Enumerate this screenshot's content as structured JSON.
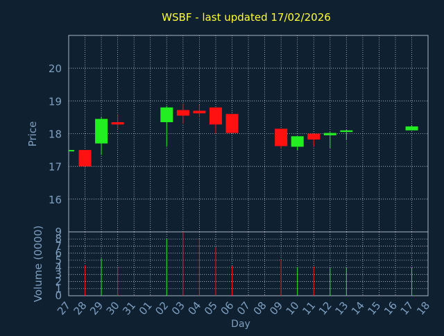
{
  "chart_data": {
    "type": "candlestick",
    "title": "WSBF - last updated 17/02/2026",
    "xlabel": "Day",
    "price_ylabel": "Price",
    "volume_ylabel": "Volume (0000)",
    "x_categories": [
      "27",
      "28",
      "29",
      "30",
      "31",
      "01",
      "02",
      "03",
      "04",
      "05",
      "06",
      "07",
      "08",
      "09",
      "10",
      "11",
      "12",
      "13",
      "14",
      "15",
      "16",
      "17",
      "18"
    ],
    "price_ylim": [
      15,
      21
    ],
    "price_yticks": [
      "16",
      "17",
      "18",
      "19",
      "20"
    ],
    "volume_ylim": [
      0,
      9
    ],
    "volume_yticks": [
      "0",
      "1",
      "2",
      "3",
      "4",
      "5",
      "6",
      "7",
      "8",
      "9"
    ],
    "grid": true,
    "colors": {
      "background": "#0f2031",
      "plot_border": "#aab4c8",
      "grid": "#c0c8d8",
      "title": "#ffff33",
      "axis_text": "#7fa0c0",
      "up": "#22ee22",
      "down": "#ff1111"
    },
    "candles": [
      {
        "day": "27",
        "open": 17.5,
        "high": 17.5,
        "low": 17.5,
        "close": 17.5,
        "volume": 0.0
      },
      {
        "day": "28",
        "open": 17.5,
        "high": 17.5,
        "low": 17.0,
        "close": 17.0,
        "volume": 4.3
      },
      {
        "day": "29",
        "open": 17.7,
        "high": 18.5,
        "low": 17.35,
        "close": 18.45,
        "volume": 5.3
      },
      {
        "day": "30",
        "open": 18.35,
        "high": 18.57,
        "low": 18.15,
        "close": 18.28,
        "volume": 4.1
      },
      {
        "day": "02",
        "open": 18.35,
        "high": 18.85,
        "low": 17.6,
        "close": 18.8,
        "volume": 8.0
      },
      {
        "day": "03",
        "open": 18.72,
        "high": 18.92,
        "low": 18.3,
        "close": 18.55,
        "volume": 9.0
      },
      {
        "day": "04",
        "open": 18.7,
        "high": 18.88,
        "low": 18.5,
        "close": 18.62,
        "volume": 8.0
      },
      {
        "day": "05",
        "open": 18.8,
        "high": 18.8,
        "low": 18.0,
        "close": 18.28,
        "volume": 6.8
      },
      {
        "day": "06",
        "open": 18.6,
        "high": 18.6,
        "low": 18.02,
        "close": 18.02,
        "volume": 4.2
      },
      {
        "day": "09",
        "open": 18.15,
        "high": 18.15,
        "low": 17.55,
        "close": 17.62,
        "volume": 5.1
      },
      {
        "day": "10",
        "open": 17.6,
        "high": 17.92,
        "low": 17.5,
        "close": 17.92,
        "volume": 4.0
      },
      {
        "day": "11",
        "open": 18.0,
        "high": 18.0,
        "low": 17.62,
        "close": 17.82,
        "volume": 4.1
      },
      {
        "day": "12",
        "open": 17.95,
        "high": 18.05,
        "low": 17.55,
        "close": 18.02,
        "volume": 4.0
      },
      {
        "day": "13",
        "open": 18.05,
        "high": 18.12,
        "low": 17.8,
        "close": 18.1,
        "volume": 4.0
      },
      {
        "day": "17",
        "open": 18.1,
        "high": 18.25,
        "low": 18.1,
        "close": 18.22,
        "volume": 4.0
      }
    ]
  }
}
